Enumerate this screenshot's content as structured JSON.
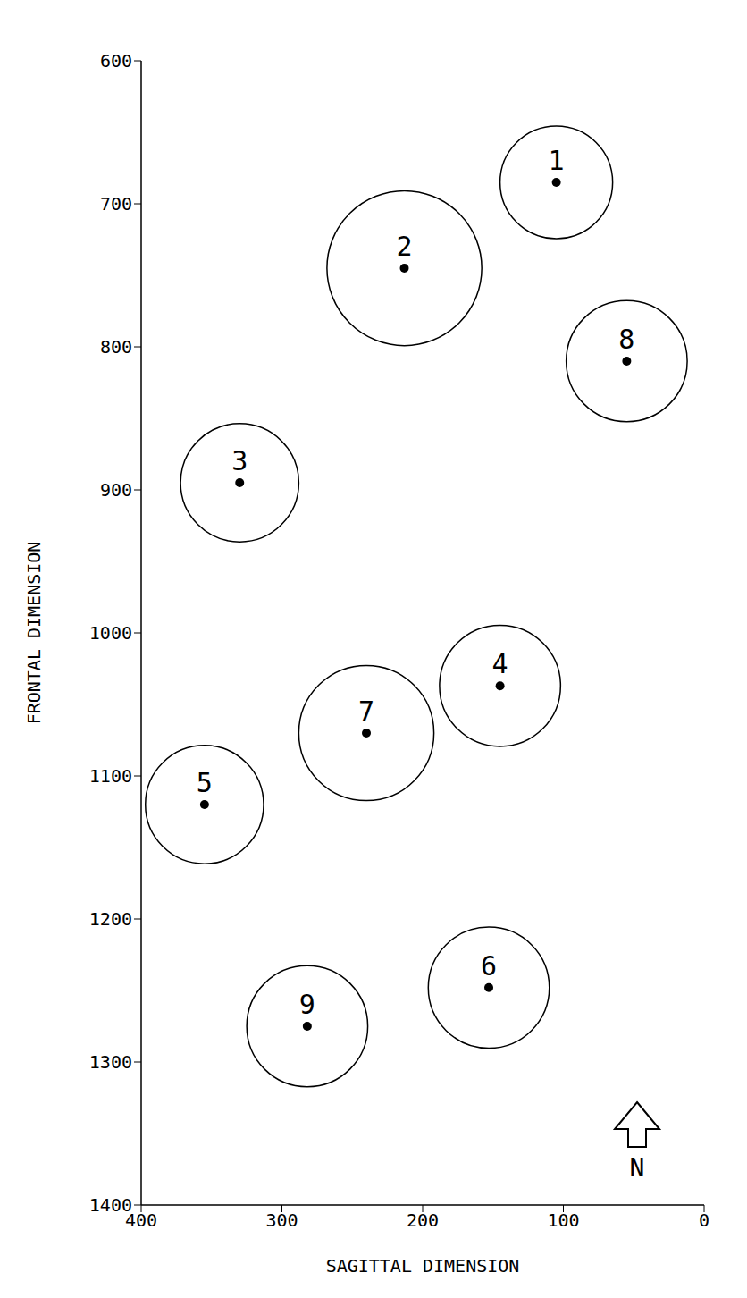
{
  "chart_data": {
    "type": "scatter",
    "xlabel": "SAGITTAL DIMENSION",
    "ylabel": "FRONTAL DIMENSION",
    "labels": [
      "1",
      "2",
      "3",
      "4",
      "5",
      "6",
      "7",
      "8",
      "9"
    ],
    "x": [
      105,
      213,
      330,
      145,
      355,
      153,
      240,
      55,
      282
    ],
    "values": [
      685,
      745,
      895,
      1037,
      1120,
      1248,
      1070,
      810,
      1275
    ],
    "radius": [
      40,
      55,
      42,
      43,
      42,
      43,
      48,
      43,
      43
    ],
    "xlim": [
      400,
      0
    ],
    "ylim": [
      1400,
      600
    ],
    "xticks": [
      400,
      300,
      200,
      100,
      0
    ],
    "yticks": [
      600,
      700,
      800,
      900,
      1000,
      1100,
      1200,
      1300,
      1400
    ],
    "grid": false,
    "marker": "circle",
    "color": "#000000",
    "annotations": [
      "N"
    ]
  }
}
